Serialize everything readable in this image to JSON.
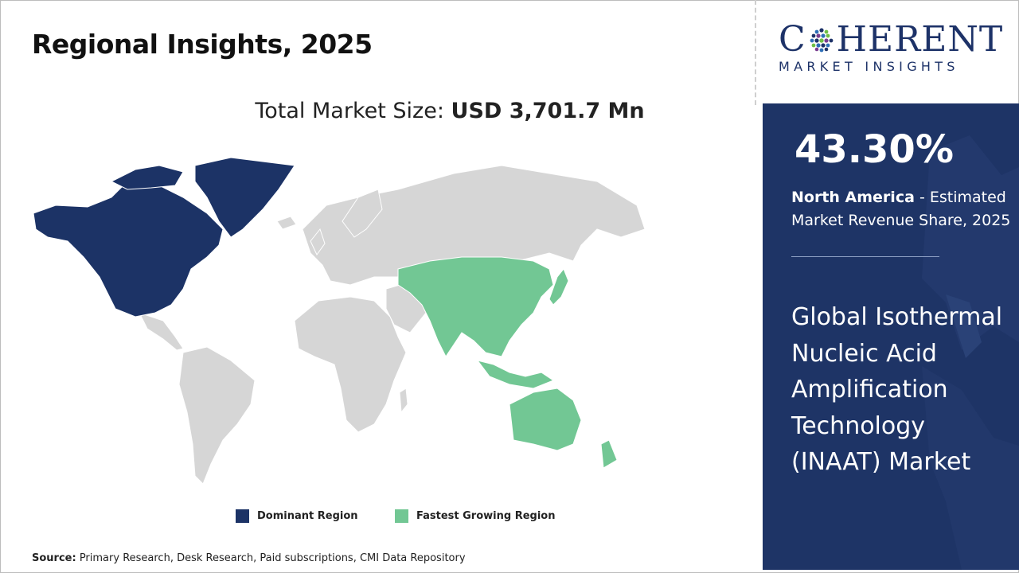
{
  "title": "Regional Insights, 2025",
  "market_size": {
    "label": "Total Market Size:",
    "value": "USD 3,701.7 Mn"
  },
  "logo": {
    "brand_top_before": "C",
    "brand_top_after": "HERENT",
    "brand_bottom": "MARKET INSIGHTS"
  },
  "highlight": {
    "percent": "43.30%",
    "region": "North America",
    "description": " - Estimated Market Revenue Share, 2025"
  },
  "market_name": "Global Isothermal Nucleic Acid Amplification Technology (INAAT) Market",
  "legend": [
    {
      "label": "Dominant Region",
      "color": "#1c3366"
    },
    {
      "label": "Fastest Growing Region",
      "color": "#72c794"
    }
  ],
  "source": {
    "label": "Source:",
    "text": " Primary Research, Desk Research, Paid subscriptions, CMI Data Repository"
  },
  "map": {
    "dominant_region": "North America",
    "fastest_growing_region": "Asia Pacific",
    "colors": {
      "dominant": "#1c3366",
      "fastest": "#72c794",
      "other": "#d6d6d6"
    }
  }
}
